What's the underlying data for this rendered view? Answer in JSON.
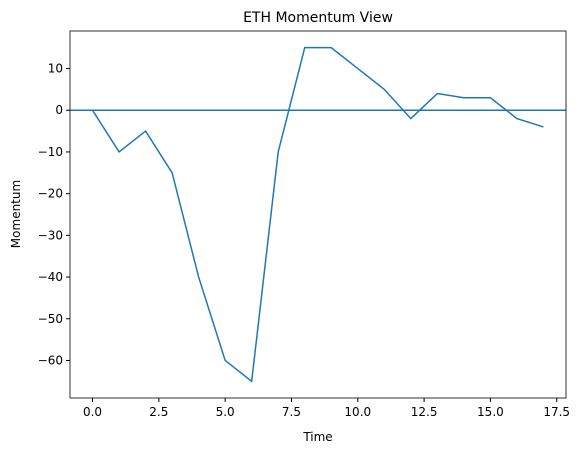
{
  "chart_data": {
    "type": "line",
    "title": "ETH Momentum View",
    "xlabel": "Time",
    "ylabel": "Momentum",
    "x": [
      0,
      1,
      2,
      3,
      4,
      5,
      6,
      7,
      8,
      9,
      10,
      11,
      12,
      13,
      14,
      15,
      16,
      17
    ],
    "series": [
      {
        "color": "#1f77b4",
        "values": [
          0,
          -10,
          -5,
          -15,
          -40,
          -60,
          -65,
          -10,
          15,
          15,
          10,
          5,
          -2,
          4,
          3,
          3,
          -2,
          -4
        ]
      }
    ],
    "hline": 0,
    "xlim": [
      -0.85,
      17.85
    ],
    "ylim": [
      -69,
      19
    ],
    "xticks": [
      {
        "value": 0,
        "label": "0.0"
      },
      {
        "value": 2.5,
        "label": "2.5"
      },
      {
        "value": 5,
        "label": "5.0"
      },
      {
        "value": 7.5,
        "label": "7.5"
      },
      {
        "value": 10,
        "label": "10.0"
      },
      {
        "value": 12.5,
        "label": "12.5"
      },
      {
        "value": 15,
        "label": "15.0"
      },
      {
        "value": 17.5,
        "label": "17.5"
      }
    ],
    "yticks": [
      {
        "value": -60,
        "label": "−60"
      },
      {
        "value": -50,
        "label": "−50"
      },
      {
        "value": -40,
        "label": "−40"
      },
      {
        "value": -30,
        "label": "−30"
      },
      {
        "value": -20,
        "label": "−20"
      },
      {
        "value": -10,
        "label": "−10"
      },
      0,
      10
    ]
  }
}
